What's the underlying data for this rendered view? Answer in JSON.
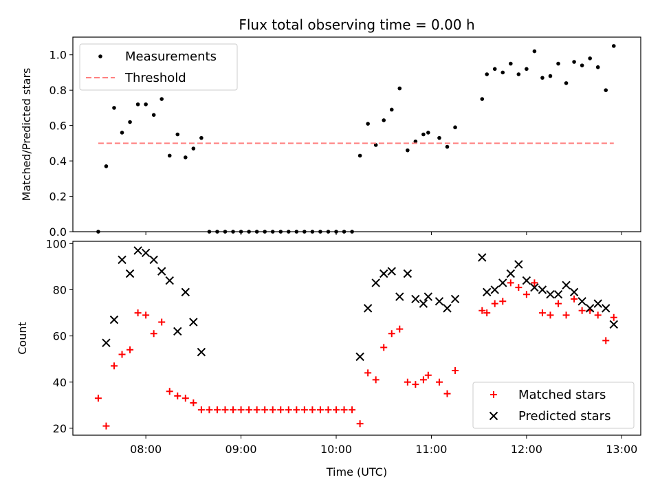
{
  "chart_data": [
    {
      "type": "scatter",
      "title": "Flux total observing time = 0.00 h",
      "xlabel": "",
      "ylabel": "Matched/Predicted stars",
      "xlim": [
        "07:14",
        "13:12"
      ],
      "ylim": [
        0,
        1.1
      ],
      "yticks": [
        "0.0",
        "0.2",
        "0.4",
        "0.6",
        "0.8",
        "1.0"
      ],
      "legend_position": "top-left",
      "series": [
        {
          "name": "Measurements",
          "marker": "dot",
          "color": "#000000",
          "points": [
            [
              "07:30",
              0.0
            ],
            [
              "07:35",
              0.37
            ],
            [
              "07:40",
              0.7
            ],
            [
              "07:45",
              0.56
            ],
            [
              "07:50",
              0.62
            ],
            [
              "07:55",
              0.72
            ],
            [
              "08:00",
              0.72
            ],
            [
              "08:05",
              0.66
            ],
            [
              "08:10",
              0.75
            ],
            [
              "08:15",
              0.43
            ],
            [
              "08:20",
              0.55
            ],
            [
              "08:25",
              0.42
            ],
            [
              "08:30",
              0.47
            ],
            [
              "08:35",
              0.53
            ],
            [
              "08:40",
              0.0
            ],
            [
              "08:45",
              0.0
            ],
            [
              "08:50",
              0.0
            ],
            [
              "08:55",
              0.0
            ],
            [
              "09:00",
              0.0
            ],
            [
              "09:05",
              0.0
            ],
            [
              "09:10",
              0.0
            ],
            [
              "09:15",
              0.0
            ],
            [
              "09:20",
              0.0
            ],
            [
              "09:25",
              0.0
            ],
            [
              "09:30",
              0.0
            ],
            [
              "09:35",
              0.0
            ],
            [
              "09:40",
              0.0
            ],
            [
              "09:45",
              0.0
            ],
            [
              "09:50",
              0.0
            ],
            [
              "09:55",
              0.0
            ],
            [
              "10:00",
              0.0
            ],
            [
              "10:05",
              0.0
            ],
            [
              "10:10",
              0.0
            ],
            [
              "10:15",
              0.43
            ],
            [
              "10:20",
              0.61
            ],
            [
              "10:25",
              0.49
            ],
            [
              "10:30",
              0.63
            ],
            [
              "10:35",
              0.69
            ],
            [
              "10:40",
              0.81
            ],
            [
              "10:45",
              0.46
            ],
            [
              "10:50",
              0.51
            ],
            [
              "10:55",
              0.55
            ],
            [
              "10:58",
              0.56
            ],
            [
              "11:05",
              0.53
            ],
            [
              "11:10",
              0.48
            ],
            [
              "11:15",
              0.59
            ],
            [
              "11:32",
              0.75
            ],
            [
              "11:35",
              0.89
            ],
            [
              "11:40",
              0.92
            ],
            [
              "11:45",
              0.9
            ],
            [
              "11:50",
              0.95
            ],
            [
              "11:55",
              0.89
            ],
            [
              "12:00",
              0.92
            ],
            [
              "12:05",
              1.02
            ],
            [
              "12:10",
              0.87
            ],
            [
              "12:15",
              0.88
            ],
            [
              "12:20",
              0.95
            ],
            [
              "12:25",
              0.84
            ],
            [
              "12:30",
              0.96
            ],
            [
              "12:35",
              0.94
            ],
            [
              "12:40",
              0.98
            ],
            [
              "12:45",
              0.93
            ],
            [
              "12:50",
              0.8
            ],
            [
              "12:55",
              1.05
            ]
          ]
        },
        {
          "name": "Threshold",
          "marker": "dashed-line",
          "color": "#ff7f7f",
          "points": [
            [
              "07:30",
              0.5
            ],
            [
              "12:55",
              0.5
            ]
          ]
        }
      ]
    },
    {
      "type": "scatter",
      "title": "",
      "xlabel": "Time (UTC)",
      "ylabel": "Count",
      "xlim": [
        "07:14",
        "13:12"
      ],
      "ylim": [
        17,
        101
      ],
      "xticks": [
        "08:00",
        "09:00",
        "10:00",
        "11:00",
        "12:00",
        "13:00"
      ],
      "yticks": [
        "20",
        "40",
        "60",
        "80",
        "100"
      ],
      "legend_position": "bottom-right",
      "series": [
        {
          "name": "Matched stars",
          "marker": "plus",
          "color": "#ff0000",
          "points": [
            [
              "07:30",
              33
            ],
            [
              "07:35",
              21
            ],
            [
              "07:40",
              47
            ],
            [
              "07:45",
              52
            ],
            [
              "07:50",
              54
            ],
            [
              "07:55",
              70
            ],
            [
              "08:00",
              69
            ],
            [
              "08:05",
              61
            ],
            [
              "08:10",
              66
            ],
            [
              "08:15",
              36
            ],
            [
              "08:20",
              34
            ],
            [
              "08:25",
              33
            ],
            [
              "08:30",
              31
            ],
            [
              "08:35",
              28
            ],
            [
              "08:40",
              28
            ],
            [
              "08:45",
              28
            ],
            [
              "08:50",
              28
            ],
            [
              "08:55",
              28
            ],
            [
              "09:00",
              28
            ],
            [
              "09:05",
              28
            ],
            [
              "09:10",
              28
            ],
            [
              "09:15",
              28
            ],
            [
              "09:20",
              28
            ],
            [
              "09:25",
              28
            ],
            [
              "09:30",
              28
            ],
            [
              "09:35",
              28
            ],
            [
              "09:40",
              28
            ],
            [
              "09:45",
              28
            ],
            [
              "09:50",
              28
            ],
            [
              "09:55",
              28
            ],
            [
              "10:00",
              28
            ],
            [
              "10:05",
              28
            ],
            [
              "10:10",
              28
            ],
            [
              "10:15",
              22
            ],
            [
              "10:20",
              44
            ],
            [
              "10:25",
              41
            ],
            [
              "10:30",
              55
            ],
            [
              "10:35",
              61
            ],
            [
              "10:40",
              63
            ],
            [
              "10:45",
              40
            ],
            [
              "10:50",
              39
            ],
            [
              "10:55",
              41
            ],
            [
              "10:58",
              43
            ],
            [
              "11:05",
              40
            ],
            [
              "11:10",
              35
            ],
            [
              "11:15",
              45
            ],
            [
              "11:32",
              71
            ],
            [
              "11:35",
              70
            ],
            [
              "11:40",
              74
            ],
            [
              "11:45",
              75
            ],
            [
              "11:50",
              83
            ],
            [
              "11:55",
              81
            ],
            [
              "12:00",
              78
            ],
            [
              "12:05",
              83
            ],
            [
              "12:10",
              70
            ],
            [
              "12:15",
              69
            ],
            [
              "12:20",
              74
            ],
            [
              "12:25",
              69
            ],
            [
              "12:30",
              76
            ],
            [
              "12:35",
              71
            ],
            [
              "12:40",
              71
            ],
            [
              "12:45",
              69
            ],
            [
              "12:50",
              58
            ],
            [
              "12:55",
              68
            ]
          ]
        },
        {
          "name": "Predicted stars",
          "marker": "x",
          "color": "#000000",
          "points": [
            [
              "07:35",
              57
            ],
            [
              "07:40",
              67
            ],
            [
              "07:45",
              93
            ],
            [
              "07:50",
              87
            ],
            [
              "07:55",
              97
            ],
            [
              "08:00",
              96
            ],
            [
              "08:05",
              93
            ],
            [
              "08:10",
              88
            ],
            [
              "08:15",
              84
            ],
            [
              "08:20",
              62
            ],
            [
              "08:25",
              79
            ],
            [
              "08:30",
              66
            ],
            [
              "08:35",
              53
            ],
            [
              "10:15",
              51
            ],
            [
              "10:20",
              72
            ],
            [
              "10:25",
              83
            ],
            [
              "10:30",
              87
            ],
            [
              "10:35",
              88
            ],
            [
              "10:40",
              77
            ],
            [
              "10:45",
              87
            ],
            [
              "10:50",
              76
            ],
            [
              "10:55",
              74
            ],
            [
              "10:58",
              77
            ],
            [
              "11:05",
              75
            ],
            [
              "11:10",
              72
            ],
            [
              "11:15",
              76
            ],
            [
              "11:32",
              94
            ],
            [
              "11:35",
              79
            ],
            [
              "11:40",
              80
            ],
            [
              "11:45",
              83
            ],
            [
              "11:50",
              87
            ],
            [
              "11:55",
              91
            ],
            [
              "12:00",
              84
            ],
            [
              "12:05",
              81
            ],
            [
              "12:10",
              80
            ],
            [
              "12:15",
              78
            ],
            [
              "12:20",
              78
            ],
            [
              "12:25",
              82
            ],
            [
              "12:30",
              79
            ],
            [
              "12:35",
              75
            ],
            [
              "12:40",
              72
            ],
            [
              "12:45",
              74
            ],
            [
              "12:50",
              72
            ],
            [
              "12:55",
              65
            ]
          ]
        }
      ]
    }
  ]
}
